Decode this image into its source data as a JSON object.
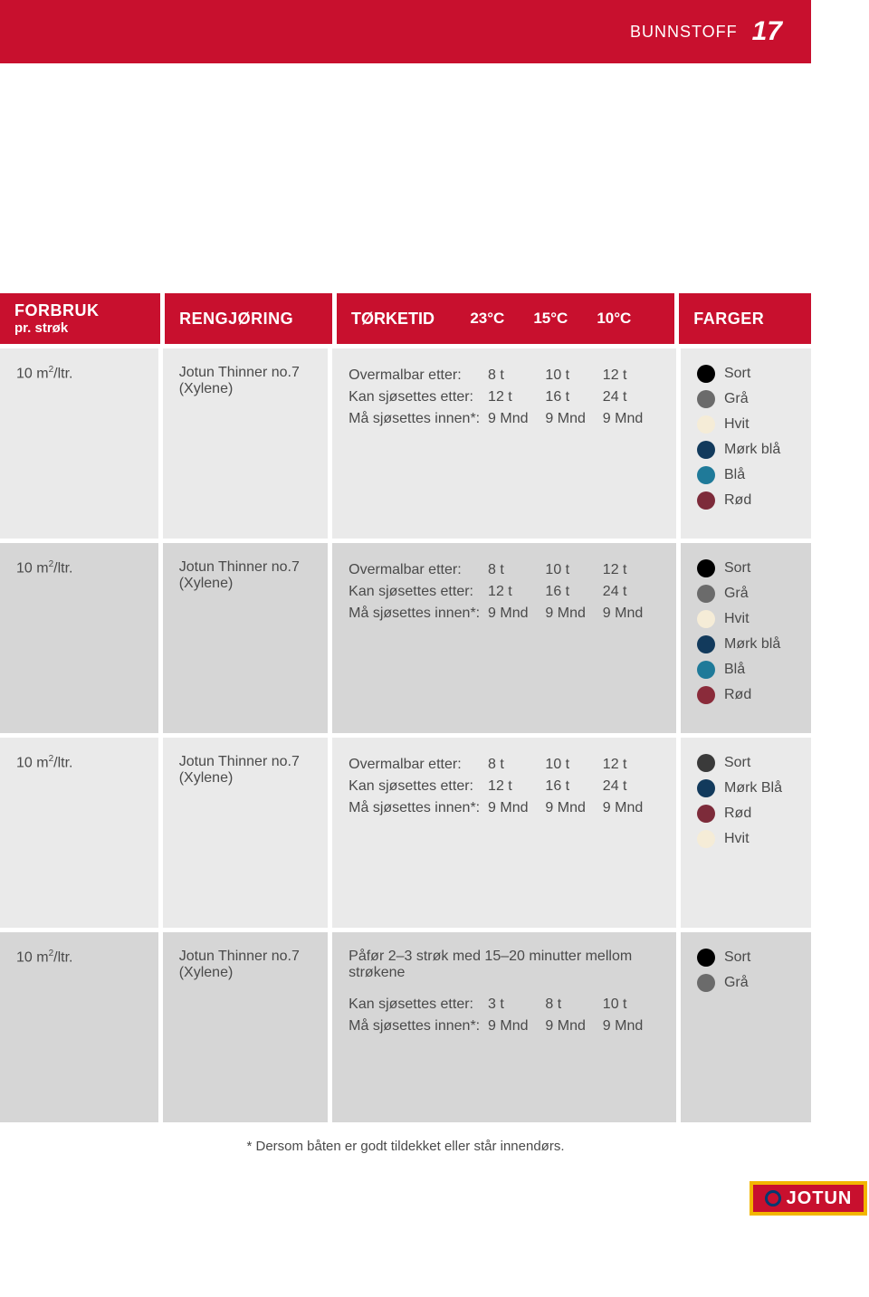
{
  "page": {
    "section": "BUNNSTOFF",
    "number": "17"
  },
  "headers": {
    "forbruk": "FORBRUK",
    "forbruk_sub": "pr. strøk",
    "reng": "RENGJØRING",
    "tork": "TØRKETID",
    "t23": "23°C",
    "t15": "15°C",
    "t10": "10°C",
    "farger": "FARGER"
  },
  "labels": {
    "overmalbar": "Overmalbar etter:",
    "sjosettes": "Kan sjøsettes etter:",
    "innen": "Må sjøsettes innen*:"
  },
  "rows": [
    {
      "forbruk": "10 m²/ltr.",
      "reng1": "Jotun Thinner no.7",
      "reng2": "(Xylene)",
      "note": "",
      "times": [
        {
          "lbl": "overmalbar",
          "v": [
            "8 t",
            "10 t",
            "12 t"
          ]
        },
        {
          "lbl": "sjosettes",
          "v": [
            "12 t",
            "16 t",
            "24 t"
          ]
        },
        {
          "lbl": "innen",
          "v": [
            "9 Mnd",
            "9 Mnd",
            "9 Mnd"
          ]
        }
      ],
      "colors": [
        {
          "name": "Sort",
          "hex": "#000000"
        },
        {
          "name": "Grå",
          "hex": "#6b6b6b"
        },
        {
          "name": "Hvit",
          "hex": "#f5ecd7"
        },
        {
          "name": "Mørk blå",
          "hex": "#123a5c"
        },
        {
          "name": "Blå",
          "hex": "#1f7a99"
        },
        {
          "name": "Rød",
          "hex": "#7d2b3a"
        }
      ]
    },
    {
      "forbruk": "10 m²/ltr.",
      "reng1": "Jotun Thinner no.7",
      "reng2": "(Xylene)",
      "note": "",
      "times": [
        {
          "lbl": "overmalbar",
          "v": [
            "8 t",
            "10 t",
            "12 t"
          ]
        },
        {
          "lbl": "sjosettes",
          "v": [
            "12 t",
            "16 t",
            "24 t"
          ]
        },
        {
          "lbl": "innen",
          "v": [
            "9 Mnd",
            "9 Mnd",
            "9 Mnd"
          ]
        }
      ],
      "colors": [
        {
          "name": "Sort",
          "hex": "#000000"
        },
        {
          "name": "Grå",
          "hex": "#6b6b6b"
        },
        {
          "name": "Hvit",
          "hex": "#f5ecd7"
        },
        {
          "name": "Mørk blå",
          "hex": "#123a5c"
        },
        {
          "name": "Blå",
          "hex": "#1f7a99"
        },
        {
          "name": "Rød",
          "hex": "#8a2b3a"
        }
      ]
    },
    {
      "forbruk": "10 m²/ltr.",
      "reng1": "Jotun Thinner no.7",
      "reng2": "(Xylene)",
      "note": "",
      "times": [
        {
          "lbl": "overmalbar",
          "v": [
            "8 t",
            "10 t",
            "12 t"
          ]
        },
        {
          "lbl": "sjosettes",
          "v": [
            "12 t",
            "16 t",
            "24 t"
          ]
        },
        {
          "lbl": "innen",
          "v": [
            "9 Mnd",
            "9 Mnd",
            "9 Mnd"
          ]
        }
      ],
      "colors": [
        {
          "name": "Sort",
          "hex": "#3a3a3a"
        },
        {
          "name": "Mørk Blå",
          "hex": "#123a5c"
        },
        {
          "name": "Rød",
          "hex": "#7d2b3a"
        },
        {
          "name": "Hvit",
          "hex": "#f5ecd7"
        }
      ]
    },
    {
      "forbruk": "10 m²/ltr.",
      "reng1": "Jotun Thinner no.7",
      "reng2": "(Xylene)",
      "note": "Påfør 2–3 strøk med 15–20 minutter mellom strøkene",
      "times": [
        {
          "lbl": "sjosettes",
          "v": [
            "3 t",
            "8 t",
            "10 t"
          ]
        },
        {
          "lbl": "innen",
          "v": [
            "9 Mnd",
            "9 Mnd",
            "9 Mnd"
          ]
        }
      ],
      "colors": [
        {
          "name": "Sort",
          "hex": "#000000"
        },
        {
          "name": "Grå",
          "hex": "#6b6b6b"
        }
      ]
    }
  ],
  "footnote": "* Dersom båten er godt tildekket eller står innendørs.",
  "brand": "JOTUN"
}
